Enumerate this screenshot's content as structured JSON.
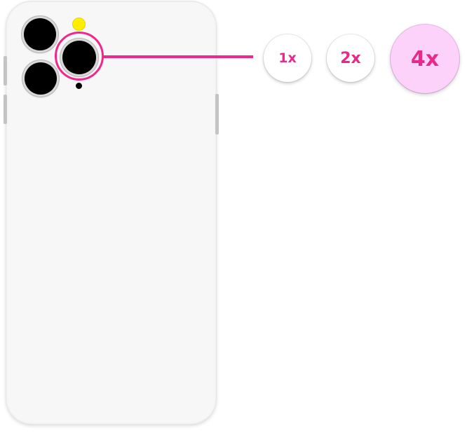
{
  "zoom_options": [
    {
      "label": "1x",
      "selected": false
    },
    {
      "label": "2x",
      "selected": false
    },
    {
      "label": "4x",
      "selected": true
    }
  ],
  "colors": {
    "accent": "#f0288c",
    "selected_bg": "#fcd2fb",
    "flash": "#ffee00",
    "phone_body": "#f7f7f7"
  }
}
